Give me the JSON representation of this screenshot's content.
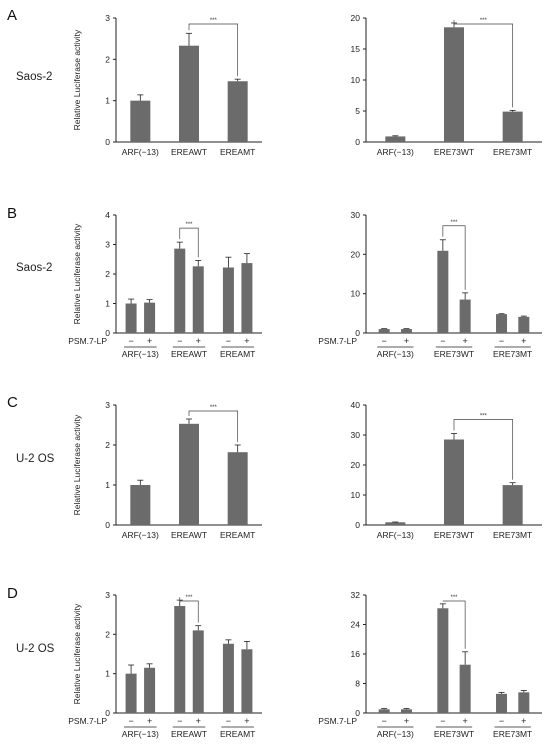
{
  "panels": [
    {
      "letter": "A",
      "cell_line": "Saos-2",
      "ylabel": "Relative Luciferase activity",
      "treatment_label": "",
      "charts": [
        {
          "type": "bar",
          "ylim": [
            0,
            3
          ],
          "yticks": [
            0,
            1,
            2,
            3
          ],
          "grouped": false,
          "categories": [
            "ARF(−13)",
            "EREAWT",
            "EREAMT"
          ],
          "values": [
            1.0,
            2.33,
            1.47
          ],
          "errors": [
            0.14,
            0.3,
            0.05
          ],
          "significance": [
            {
              "from": 1,
              "to": 2,
              "label": "***"
            }
          ]
        },
        {
          "type": "bar",
          "ylim": [
            0,
            20
          ],
          "yticks": [
            0,
            5,
            10,
            15,
            20
          ],
          "grouped": false,
          "categories": [
            "ARF(−13)",
            "ERE73WT",
            "ERE73MT"
          ],
          "values": [
            0.9,
            18.5,
            4.9
          ],
          "errors": [
            0.1,
            0.7,
            0.2
          ],
          "significance": [
            {
              "from": 1,
              "to": 2,
              "label": "***"
            }
          ]
        }
      ]
    },
    {
      "letter": "B",
      "cell_line": "Saos-2",
      "ylabel": "Relative Luciferase activity",
      "treatment_label": "PSM.7-LP",
      "charts": [
        {
          "type": "bar",
          "ylim": [
            0,
            4
          ],
          "yticks": [
            0,
            1,
            2,
            3,
            4
          ],
          "grouped": true,
          "categories": [
            "ARF(−13)",
            "EREAWT",
            "EREAMT"
          ],
          "treatment": [
            "−",
            "+"
          ],
          "values": [
            1.0,
            1.03,
            2.86,
            2.26,
            2.22,
            2.37
          ],
          "errors": [
            0.15,
            0.1,
            0.22,
            0.2,
            0.35,
            0.32
          ],
          "significance": [
            {
              "from": 2,
              "to": 3,
              "label": "***"
            }
          ]
        },
        {
          "type": "bar",
          "ylim": [
            0,
            30
          ],
          "yticks": [
            0,
            10,
            20,
            30
          ],
          "grouped": true,
          "categories": [
            "ARF(−13)",
            "ERE73WT",
            "ERE73MT"
          ],
          "treatment": [
            "−",
            "+"
          ],
          "values": [
            1.0,
            1.0,
            20.9,
            8.5,
            4.8,
            4.1
          ],
          "errors": [
            0.1,
            0.1,
            2.8,
            1.7,
            0.1,
            0.2
          ],
          "significance": [
            {
              "from": 2,
              "to": 3,
              "label": "***"
            }
          ]
        }
      ]
    },
    {
      "letter": "C",
      "cell_line": "U-2 OS",
      "ylabel": "Relative Luciferase activity",
      "treatment_label": "",
      "charts": [
        {
          "type": "bar",
          "ylim": [
            0,
            3
          ],
          "yticks": [
            0,
            1,
            2,
            3
          ],
          "grouped": false,
          "categories": [
            "ARF(−13)",
            "EREAWT",
            "EREAMT"
          ],
          "values": [
            1.0,
            2.53,
            1.82
          ],
          "errors": [
            0.12,
            0.12,
            0.18
          ],
          "significance": [
            {
              "from": 1,
              "to": 2,
              "label": "***"
            }
          ]
        },
        {
          "type": "bar",
          "ylim": [
            0,
            40
          ],
          "yticks": [
            0,
            10,
            20,
            30,
            40
          ],
          "grouped": false,
          "categories": [
            "ARF(−13)",
            "ERE73WT",
            "ERE73MT"
          ],
          "values": [
            0.9,
            28.5,
            13.3
          ],
          "errors": [
            0.1,
            2.0,
            0.8
          ],
          "significance": [
            {
              "from": 1,
              "to": 2,
              "label": "***"
            }
          ]
        }
      ]
    },
    {
      "letter": "D",
      "cell_line": "U-2 OS",
      "ylabel": "Relative Luciferase activity",
      "treatment_label": "PSM.7-LP",
      "charts": [
        {
          "type": "bar",
          "ylim": [
            0,
            3
          ],
          "yticks": [
            0,
            1,
            2,
            3
          ],
          "grouped": true,
          "categories": [
            "ARF(−13)",
            "EREAWT",
            "EREAMT"
          ],
          "treatment": [
            "−",
            "+"
          ],
          "values": [
            1.0,
            1.15,
            2.72,
            2.1,
            1.76,
            1.62
          ],
          "errors": [
            0.22,
            0.1,
            0.15,
            0.12,
            0.1,
            0.2
          ],
          "significance": [
            {
              "from": 2,
              "to": 3,
              "label": "***"
            }
          ]
        },
        {
          "type": "bar",
          "ylim": [
            0,
            32
          ],
          "yticks": [
            0,
            8,
            16,
            24,
            32
          ],
          "grouped": true,
          "categories": [
            "ARF(−13)",
            "ERE73WT",
            "ERE73MT"
          ],
          "treatment": [
            "−",
            "+"
          ],
          "values": [
            1.0,
            1.0,
            28.4,
            13.1,
            5.2,
            5.6
          ],
          "errors": [
            0.2,
            0.2,
            1.2,
            3.5,
            0.4,
            0.5
          ],
          "significance": [
            {
              "from": 2,
              "to": 3,
              "label": "***"
            }
          ]
        }
      ]
    }
  ]
}
